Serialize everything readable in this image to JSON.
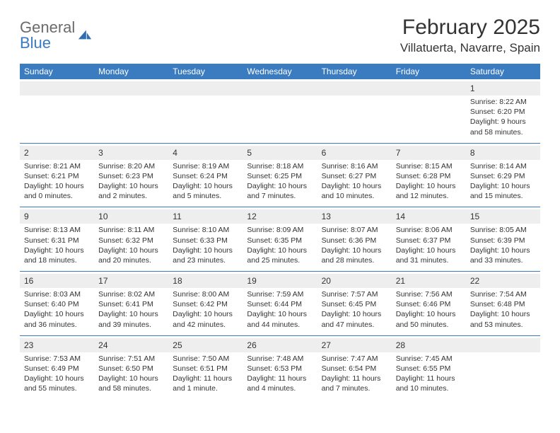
{
  "logo": {
    "textGray": "General",
    "textBlue": "Blue"
  },
  "header": {
    "title": "February 2025",
    "location": "Villatuerta, Navarre, Spain"
  },
  "colors": {
    "headerBar": "#3b7bbf",
    "background": "#ffffff",
    "altRow": "#eeeeee",
    "text": "#333333",
    "logoGray": "#6b6b6b",
    "logoBlue": "#3b7bbf"
  },
  "typography": {
    "title_fontsize": 30,
    "location_fontsize": 17,
    "dayhead_fontsize": 12,
    "daynum_fontsize": 12,
    "info_fontsize": 10.5
  },
  "dayNames": [
    "Sunday",
    "Monday",
    "Tuesday",
    "Wednesday",
    "Thursday",
    "Friday",
    "Saturday"
  ],
  "labels": {
    "sunrise": "Sunrise:",
    "sunset": "Sunset:",
    "daylight": "Daylight:"
  },
  "weeks": [
    [
      null,
      null,
      null,
      null,
      null,
      null,
      {
        "n": "1",
        "sunrise": "8:22 AM",
        "sunset": "6:20 PM",
        "daylight": "9 hours and 58 minutes."
      }
    ],
    [
      {
        "n": "2",
        "sunrise": "8:21 AM",
        "sunset": "6:21 PM",
        "daylight": "10 hours and 0 minutes."
      },
      {
        "n": "3",
        "sunrise": "8:20 AM",
        "sunset": "6:23 PM",
        "daylight": "10 hours and 2 minutes."
      },
      {
        "n": "4",
        "sunrise": "8:19 AM",
        "sunset": "6:24 PM",
        "daylight": "10 hours and 5 minutes."
      },
      {
        "n": "5",
        "sunrise": "8:18 AM",
        "sunset": "6:25 PM",
        "daylight": "10 hours and 7 minutes."
      },
      {
        "n": "6",
        "sunrise": "8:16 AM",
        "sunset": "6:27 PM",
        "daylight": "10 hours and 10 minutes."
      },
      {
        "n": "7",
        "sunrise": "8:15 AM",
        "sunset": "6:28 PM",
        "daylight": "10 hours and 12 minutes."
      },
      {
        "n": "8",
        "sunrise": "8:14 AM",
        "sunset": "6:29 PM",
        "daylight": "10 hours and 15 minutes."
      }
    ],
    [
      {
        "n": "9",
        "sunrise": "8:13 AM",
        "sunset": "6:31 PM",
        "daylight": "10 hours and 18 minutes."
      },
      {
        "n": "10",
        "sunrise": "8:11 AM",
        "sunset": "6:32 PM",
        "daylight": "10 hours and 20 minutes."
      },
      {
        "n": "11",
        "sunrise": "8:10 AM",
        "sunset": "6:33 PM",
        "daylight": "10 hours and 23 minutes."
      },
      {
        "n": "12",
        "sunrise": "8:09 AM",
        "sunset": "6:35 PM",
        "daylight": "10 hours and 25 minutes."
      },
      {
        "n": "13",
        "sunrise": "8:07 AM",
        "sunset": "6:36 PM",
        "daylight": "10 hours and 28 minutes."
      },
      {
        "n": "14",
        "sunrise": "8:06 AM",
        "sunset": "6:37 PM",
        "daylight": "10 hours and 31 minutes."
      },
      {
        "n": "15",
        "sunrise": "8:05 AM",
        "sunset": "6:39 PM",
        "daylight": "10 hours and 33 minutes."
      }
    ],
    [
      {
        "n": "16",
        "sunrise": "8:03 AM",
        "sunset": "6:40 PM",
        "daylight": "10 hours and 36 minutes."
      },
      {
        "n": "17",
        "sunrise": "8:02 AM",
        "sunset": "6:41 PM",
        "daylight": "10 hours and 39 minutes."
      },
      {
        "n": "18",
        "sunrise": "8:00 AM",
        "sunset": "6:42 PM",
        "daylight": "10 hours and 42 minutes."
      },
      {
        "n": "19",
        "sunrise": "7:59 AM",
        "sunset": "6:44 PM",
        "daylight": "10 hours and 44 minutes."
      },
      {
        "n": "20",
        "sunrise": "7:57 AM",
        "sunset": "6:45 PM",
        "daylight": "10 hours and 47 minutes."
      },
      {
        "n": "21",
        "sunrise": "7:56 AM",
        "sunset": "6:46 PM",
        "daylight": "10 hours and 50 minutes."
      },
      {
        "n": "22",
        "sunrise": "7:54 AM",
        "sunset": "6:48 PM",
        "daylight": "10 hours and 53 minutes."
      }
    ],
    [
      {
        "n": "23",
        "sunrise": "7:53 AM",
        "sunset": "6:49 PM",
        "daylight": "10 hours and 55 minutes."
      },
      {
        "n": "24",
        "sunrise": "7:51 AM",
        "sunset": "6:50 PM",
        "daylight": "10 hours and 58 minutes."
      },
      {
        "n": "25",
        "sunrise": "7:50 AM",
        "sunset": "6:51 PM",
        "daylight": "11 hours and 1 minute."
      },
      {
        "n": "26",
        "sunrise": "7:48 AM",
        "sunset": "6:53 PM",
        "daylight": "11 hours and 4 minutes."
      },
      {
        "n": "27",
        "sunrise": "7:47 AM",
        "sunset": "6:54 PM",
        "daylight": "11 hours and 7 minutes."
      },
      {
        "n": "28",
        "sunrise": "7:45 AM",
        "sunset": "6:55 PM",
        "daylight": "11 hours and 10 minutes."
      },
      null
    ]
  ]
}
